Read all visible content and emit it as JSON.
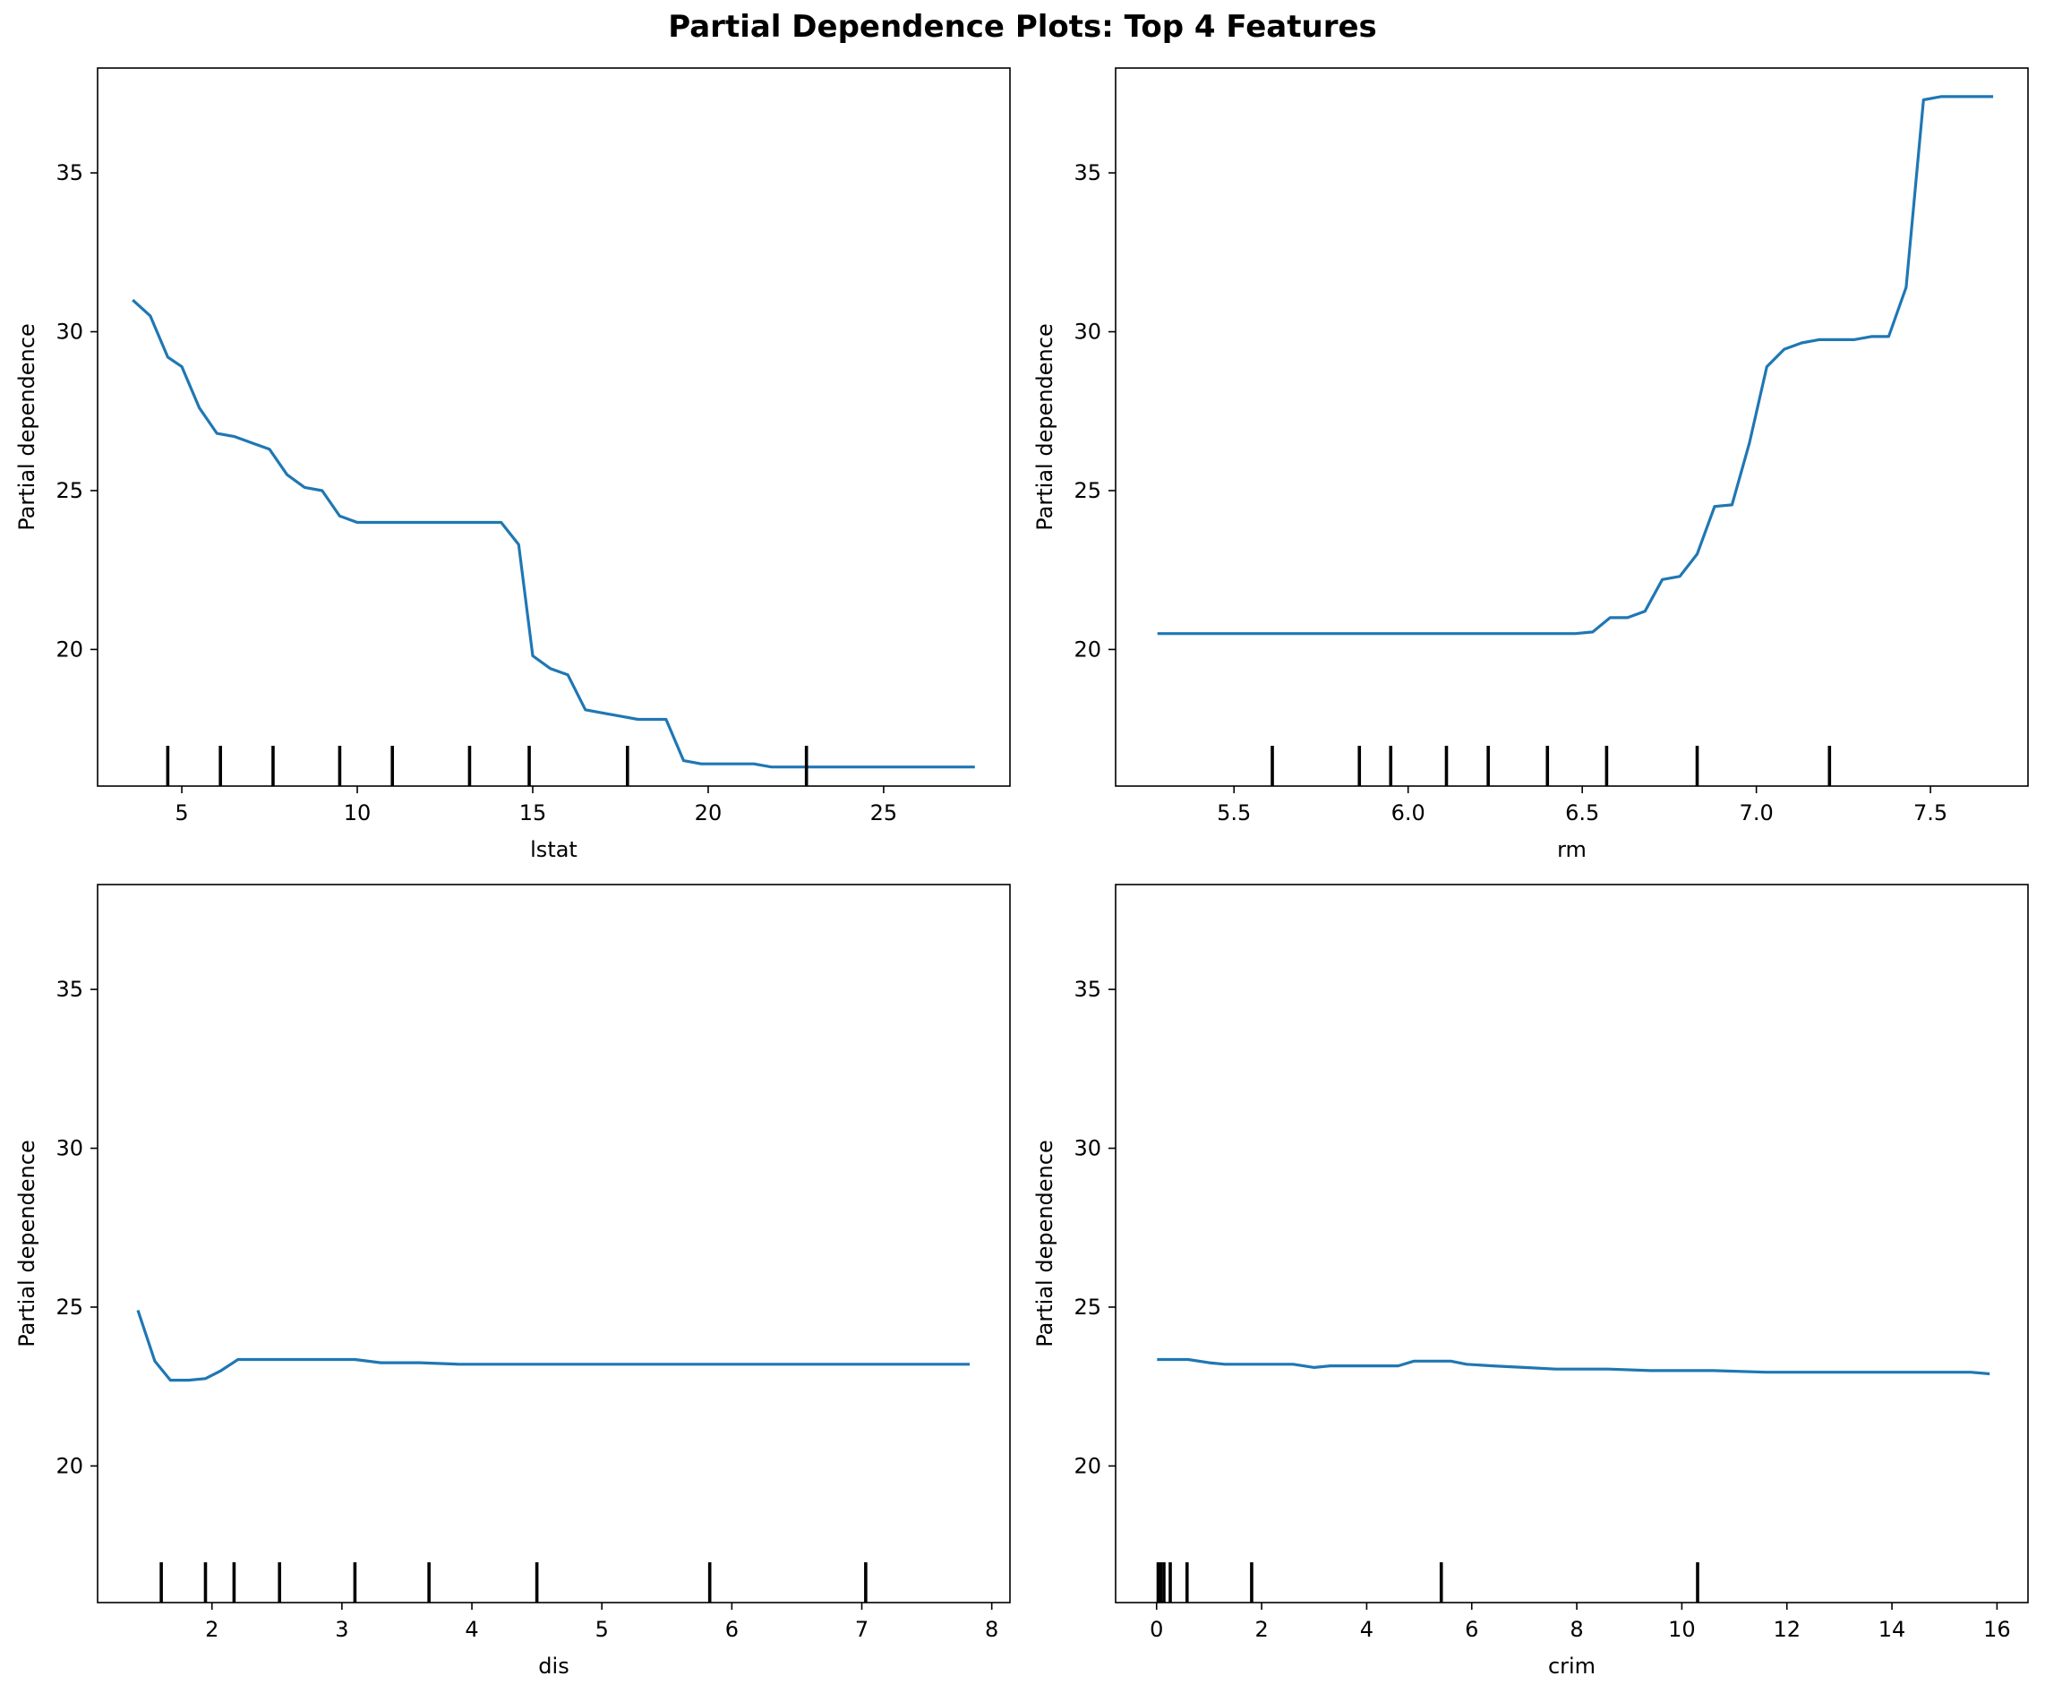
{
  "figure": {
    "title": "Partial Dependence Plots: Top 4 Features"
  },
  "colors": {
    "line": "#1f77b4",
    "axes": "#000000",
    "rug": "#000000"
  },
  "chart_data": [
    {
      "type": "line",
      "xlabel": "lstat",
      "ylabel": "Partial dependence",
      "xlim": [
        2.6,
        28.6
      ],
      "ylim": [
        15.7,
        38.3
      ],
      "xticks": [
        5,
        10,
        15,
        20,
        25
      ],
      "xtick_labels": [
        "5",
        "10",
        "15",
        "20",
        "25"
      ],
      "yticks": [
        20,
        25,
        30,
        35
      ],
      "ytick_labels": [
        "20",
        "25",
        "30",
        "35"
      ],
      "grid": false,
      "rug": [
        4.6,
        6.1,
        7.6,
        9.5,
        11.0,
        13.2,
        14.9,
        17.7,
        22.8
      ],
      "x": [
        3.6,
        4.1,
        4.6,
        5.0,
        5.5,
        6.0,
        6.5,
        7.0,
        7.5,
        8.0,
        8.5,
        9.0,
        9.5,
        10.0,
        10.5,
        11.0,
        12.0,
        13.0,
        13.6,
        14.1,
        14.6,
        15.0,
        15.5,
        16.0,
        16.5,
        17.0,
        17.5,
        18.0,
        18.5,
        18.8,
        19.3,
        19.8,
        20.3,
        20.8,
        21.3,
        21.8,
        22.3,
        23.0,
        24.0,
        25.0,
        26.0,
        27.0,
        27.6
      ],
      "y": [
        31.0,
        30.5,
        29.2,
        28.9,
        27.6,
        26.8,
        26.7,
        26.5,
        26.3,
        25.5,
        25.1,
        25.0,
        24.2,
        24.0,
        24.0,
        24.0,
        24.0,
        24.0,
        24.0,
        24.0,
        23.3,
        19.8,
        19.4,
        19.2,
        18.1,
        18.0,
        17.9,
        17.8,
        17.8,
        17.8,
        16.5,
        16.4,
        16.4,
        16.4,
        16.4,
        16.3,
        16.3,
        16.3,
        16.3,
        16.3,
        16.3,
        16.3,
        16.3
      ]
    },
    {
      "type": "line",
      "xlabel": "rm",
      "ylabel": "Partial dependence",
      "xlim": [
        5.16,
        7.78
      ],
      "ylim": [
        15.7,
        38.3
      ],
      "xticks": [
        5.5,
        6.0,
        6.5,
        7.0,
        7.5
      ],
      "xtick_labels": [
        "5.5",
        "6.0",
        "6.5",
        "7.0",
        "7.5"
      ],
      "yticks": [
        20,
        25,
        30,
        35
      ],
      "ytick_labels": [
        "20",
        "25",
        "30",
        "35"
      ],
      "grid": false,
      "rug": [
        5.61,
        5.86,
        5.95,
        6.11,
        6.23,
        6.4,
        6.57,
        6.83,
        7.21
      ],
      "x": [
        5.28,
        5.5,
        5.8,
        6.0,
        6.2,
        6.3,
        6.4,
        6.48,
        6.53,
        6.58,
        6.63,
        6.68,
        6.73,
        6.78,
        6.83,
        6.88,
        6.93,
        6.98,
        7.03,
        7.08,
        7.13,
        7.18,
        7.23,
        7.28,
        7.33,
        7.38,
        7.43,
        7.48,
        7.53,
        7.6,
        7.68
      ],
      "y": [
        20.5,
        20.5,
        20.5,
        20.5,
        20.5,
        20.5,
        20.5,
        20.5,
        20.55,
        21.0,
        21.0,
        21.2,
        22.2,
        22.3,
        23.0,
        24.5,
        24.55,
        26.5,
        28.9,
        29.45,
        29.65,
        29.75,
        29.75,
        29.75,
        29.85,
        29.85,
        31.4,
        37.3,
        37.4,
        37.4,
        37.4
      ]
    },
    {
      "type": "line",
      "xlabel": "dis",
      "ylabel": "Partial dependence",
      "xlim": [
        1.12,
        8.14
      ],
      "ylim": [
        15.7,
        38.3
      ],
      "xticks": [
        2,
        3,
        4,
        5,
        6,
        7,
        8
      ],
      "xtick_labels": [
        "2",
        "3",
        "4",
        "5",
        "6",
        "7",
        "8"
      ],
      "yticks": [
        20,
        25,
        30,
        35
      ],
      "ytick_labels": [
        "20",
        "25",
        "30",
        "35"
      ],
      "grid": false,
      "rug": [
        1.61,
        1.95,
        2.17,
        2.52,
        3.1,
        3.67,
        4.5,
        5.83,
        7.03
      ],
      "x": [
        1.43,
        1.56,
        1.68,
        1.82,
        1.95,
        2.07,
        2.2,
        2.5,
        2.8,
        3.1,
        3.3,
        3.6,
        3.9,
        4.0,
        4.5,
        5.0,
        5.5,
        6.0,
        6.5,
        7.0,
        7.5,
        7.83
      ],
      "y": [
        24.9,
        23.3,
        22.7,
        22.7,
        22.75,
        23.0,
        23.35,
        23.35,
        23.35,
        23.35,
        23.25,
        23.25,
        23.2,
        23.2,
        23.2,
        23.2,
        23.2,
        23.2,
        23.2,
        23.2,
        23.2,
        23.2
      ]
    },
    {
      "type": "line",
      "xlabel": "crim",
      "ylabel": "Partial dependence",
      "xlim": [
        -0.78,
        16.59
      ],
      "ylim": [
        15.7,
        38.3
      ],
      "xticks": [
        0,
        2,
        4,
        6,
        8,
        10,
        12,
        14,
        16
      ],
      "xtick_labels": [
        "0",
        "2",
        "4",
        "6",
        "8",
        "10",
        "12",
        "14",
        "16"
      ],
      "yticks": [
        20,
        25,
        30,
        35
      ],
      "ytick_labels": [
        "20",
        "25",
        "30",
        "35"
      ],
      "grid": false,
      "rug": [
        0.03,
        0.08,
        0.14,
        0.26,
        0.58,
        1.81,
        5.42,
        10.3
      ],
      "x": [
        0.01,
        0.3,
        0.6,
        1.0,
        1.3,
        1.6,
        2.0,
        2.6,
        3.0,
        3.3,
        3.6,
        4.0,
        4.6,
        4.9,
        5.6,
        5.9,
        6.4,
        7.0,
        7.6,
        8.0,
        8.6,
        9.4,
        10.0,
        10.6,
        11.6,
        12.6,
        13.6,
        14.6,
        15.5,
        15.86
      ],
      "y": [
        23.35,
        23.35,
        23.35,
        23.25,
        23.2,
        23.2,
        23.2,
        23.2,
        23.1,
        23.15,
        23.15,
        23.15,
        23.15,
        23.3,
        23.3,
        23.2,
        23.15,
        23.1,
        23.05,
        23.05,
        23.05,
        23.0,
        23.0,
        23.0,
        22.95,
        22.95,
        22.95,
        22.95,
        22.95,
        22.9
      ]
    }
  ]
}
